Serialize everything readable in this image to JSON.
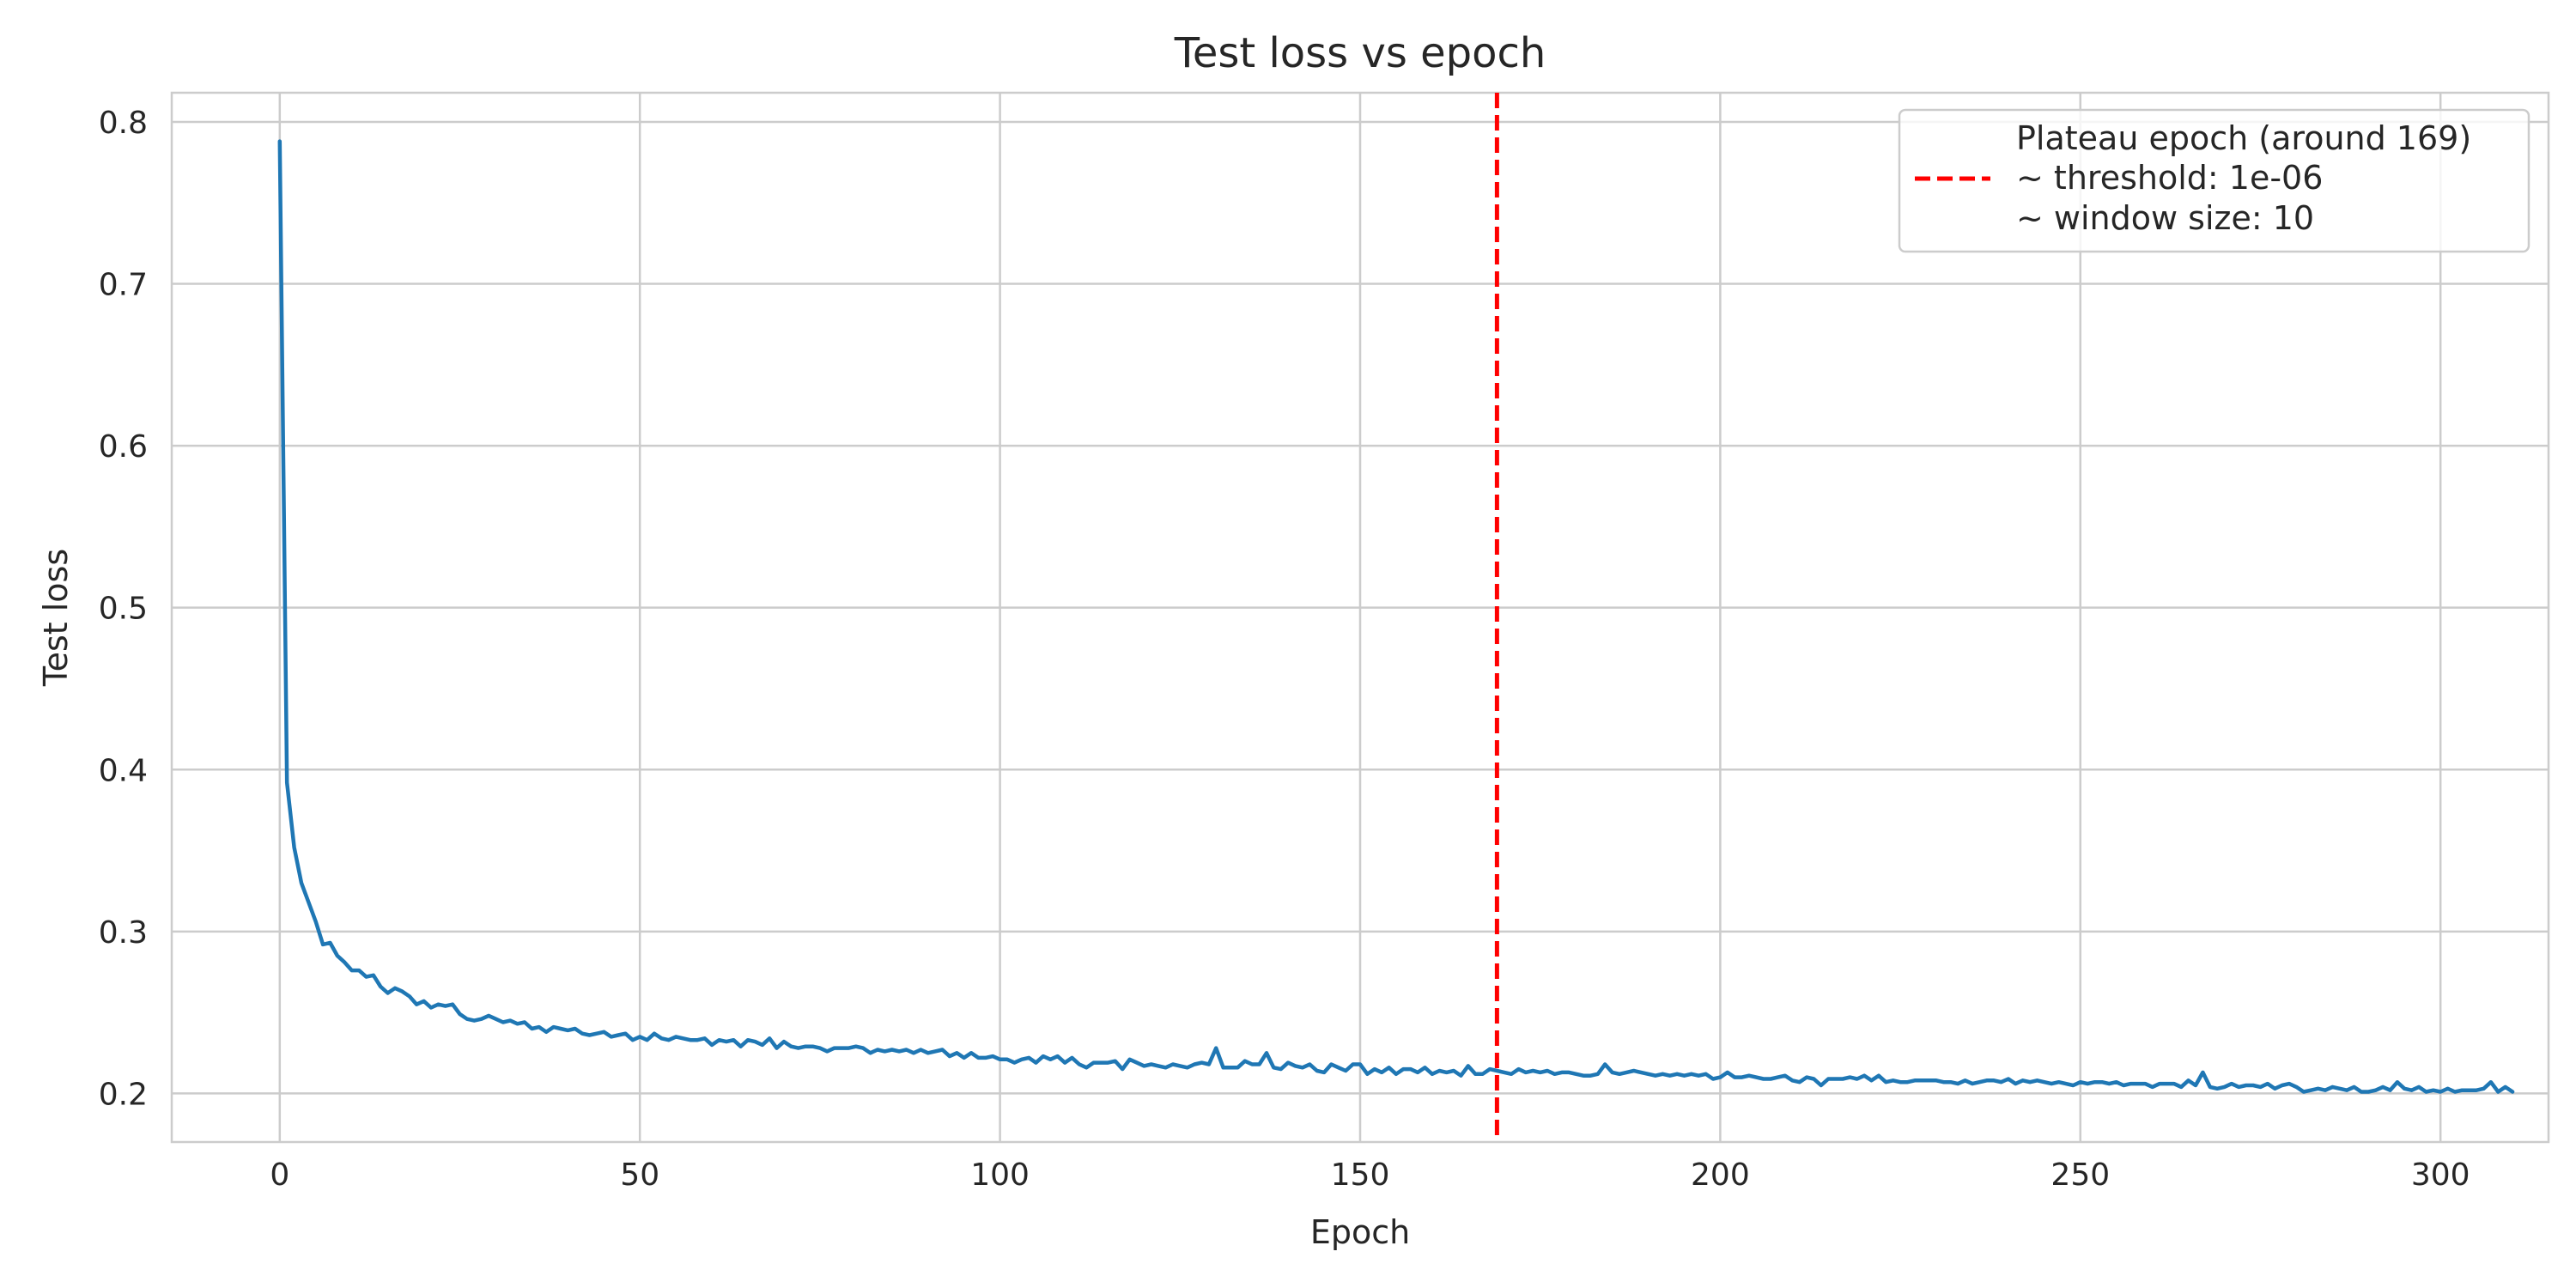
{
  "chart_data": {
    "type": "line",
    "title": "Test loss vs epoch",
    "xlabel": "Epoch",
    "ylabel": "Test loss",
    "xlim": [
      -15,
      315
    ],
    "ylim": [
      0.17,
      0.818
    ],
    "x_ticks": [
      0,
      50,
      100,
      150,
      200,
      250,
      300
    ],
    "y_ticks": [
      0.2,
      0.3,
      0.4,
      0.5,
      0.6,
      0.7,
      0.8
    ],
    "x_tick_labels": [
      "0",
      "50",
      "100",
      "150",
      "200",
      "250",
      "300"
    ],
    "y_tick_labels": [
      "0.2",
      "0.3",
      "0.4",
      "0.5",
      "0.6",
      "0.7",
      "0.8"
    ],
    "grid": true,
    "legend_position": "top-right",
    "series": [
      {
        "color": "#1f77b4",
        "x_start": 0,
        "x_step": 1,
        "values": [
          0.788,
          0.392,
          0.352,
          0.33,
          0.318,
          0.306,
          0.292,
          0.293,
          0.285,
          0.281,
          0.276,
          0.276,
          0.272,
          0.273,
          0.266,
          0.262,
          0.265,
          0.263,
          0.26,
          0.255,
          0.257,
          0.253,
          0.255,
          0.254,
          0.255,
          0.249,
          0.246,
          0.245,
          0.246,
          0.248,
          0.246,
          0.244,
          0.245,
          0.243,
          0.244,
          0.24,
          0.241,
          0.238,
          0.241,
          0.24,
          0.239,
          0.24,
          0.237,
          0.236,
          0.237,
          0.238,
          0.235,
          0.236,
          0.237,
          0.233,
          0.235,
          0.233,
          0.237,
          0.234,
          0.233,
          0.235,
          0.234,
          0.233,
          0.233,
          0.234,
          0.23,
          0.233,
          0.232,
          0.233,
          0.229,
          0.233,
          0.232,
          0.23,
          0.234,
          0.228,
          0.232,
          0.229,
          0.228,
          0.229,
          0.229,
          0.228,
          0.226,
          0.228,
          0.228,
          0.228,
          0.229,
          0.228,
          0.225,
          0.227,
          0.226,
          0.227,
          0.226,
          0.227,
          0.225,
          0.227,
          0.225,
          0.226,
          0.227,
          0.223,
          0.225,
          0.222,
          0.225,
          0.222,
          0.222,
          0.223,
          0.221,
          0.221,
          0.219,
          0.221,
          0.222,
          0.219,
          0.223,
          0.221,
          0.223,
          0.219,
          0.222,
          0.218,
          0.216,
          0.219,
          0.219,
          0.219,
          0.22,
          0.215,
          0.221,
          0.219,
          0.217,
          0.218,
          0.217,
          0.216,
          0.218,
          0.217,
          0.216,
          0.218,
          0.219,
          0.218,
          0.228,
          0.216,
          0.216,
          0.216,
          0.22,
          0.218,
          0.218,
          0.225,
          0.216,
          0.215,
          0.219,
          0.217,
          0.216,
          0.218,
          0.214,
          0.213,
          0.218,
          0.216,
          0.214,
          0.218,
          0.218,
          0.212,
          0.215,
          0.213,
          0.216,
          0.212,
          0.215,
          0.215,
          0.213,
          0.216,
          0.212,
          0.214,
          0.213,
          0.214,
          0.211,
          0.217,
          0.212,
          0.212,
          0.215,
          0.214,
          0.213,
          0.212,
          0.215,
          0.213,
          0.214,
          0.213,
          0.214,
          0.212,
          0.213,
          0.213,
          0.212,
          0.211,
          0.211,
          0.212,
          0.218,
          0.213,
          0.212,
          0.213,
          0.214,
          0.213,
          0.212,
          0.211,
          0.212,
          0.211,
          0.212,
          0.211,
          0.212,
          0.211,
          0.212,
          0.209,
          0.21,
          0.213,
          0.21,
          0.21,
          0.211,
          0.21,
          0.209,
          0.209,
          0.21,
          0.211,
          0.208,
          0.207,
          0.21,
          0.209,
          0.205,
          0.209,
          0.209,
          0.209,
          0.21,
          0.209,
          0.211,
          0.208,
          0.211,
          0.207,
          0.208,
          0.207,
          0.207,
          0.208,
          0.208,
          0.208,
          0.208,
          0.207,
          0.207,
          0.206,
          0.208,
          0.206,
          0.207,
          0.208,
          0.208,
          0.207,
          0.209,
          0.206,
          0.208,
          0.207,
          0.208,
          0.207,
          0.206,
          0.207,
          0.206,
          0.205,
          0.207,
          0.206,
          0.207,
          0.207,
          0.206,
          0.207,
          0.205,
          0.206,
          0.206,
          0.206,
          0.204,
          0.206,
          0.206,
          0.206,
          0.204,
          0.208,
          0.205,
          0.213,
          0.204,
          0.203,
          0.204,
          0.206,
          0.204,
          0.205,
          0.205,
          0.204,
          0.206,
          0.203,
          0.205,
          0.206,
          0.204,
          0.201,
          0.202,
          0.203,
          0.202,
          0.204,
          0.203,
          0.202,
          0.204,
          0.201,
          0.201,
          0.202,
          0.204,
          0.202,
          0.207,
          0.203,
          0.202,
          0.204,
          0.201,
          0.202,
          0.201,
          0.203,
          0.201,
          0.202,
          0.202,
          0.202,
          0.203,
          0.207,
          0.201,
          0.204,
          0.201
        ]
      }
    ],
    "vline": {
      "x": 169,
      "color": "#ff0000",
      "style": "dashed"
    },
    "legend_entries": [
      {
        "label_lines": [
          "Plateau epoch (around 169)",
          "~ threshold: 1e-06",
          "~ window size: 10"
        ],
        "color": "#ff0000",
        "style": "dashed"
      }
    ]
  }
}
